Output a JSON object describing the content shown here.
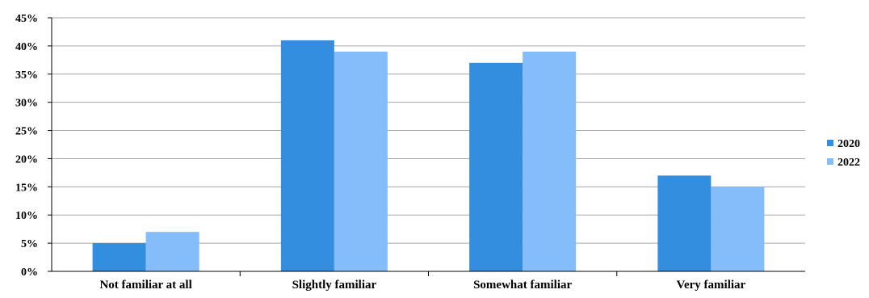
{
  "chart_data": {
    "type": "bar",
    "title": "",
    "xlabel": "",
    "ylabel": "",
    "categories": [
      "Not familiar at all",
      "Slightly familiar",
      "Somewhat familiar",
      "Very familiar"
    ],
    "series": [
      {
        "name": "2020",
        "values": [
          5,
          41,
          37,
          17
        ],
        "color": "#338ee0"
      },
      {
        "name": "2022",
        "values": [
          7,
          39,
          39,
          15
        ],
        "color": "#85bdfb"
      }
    ],
    "ylim": [
      0,
      45
    ],
    "yticks": [
      "0%",
      "5%",
      "10%",
      "15%",
      "20%",
      "25%",
      "30%",
      "35%",
      "40%",
      "45%"
    ],
    "grid": true,
    "legend": "right"
  }
}
